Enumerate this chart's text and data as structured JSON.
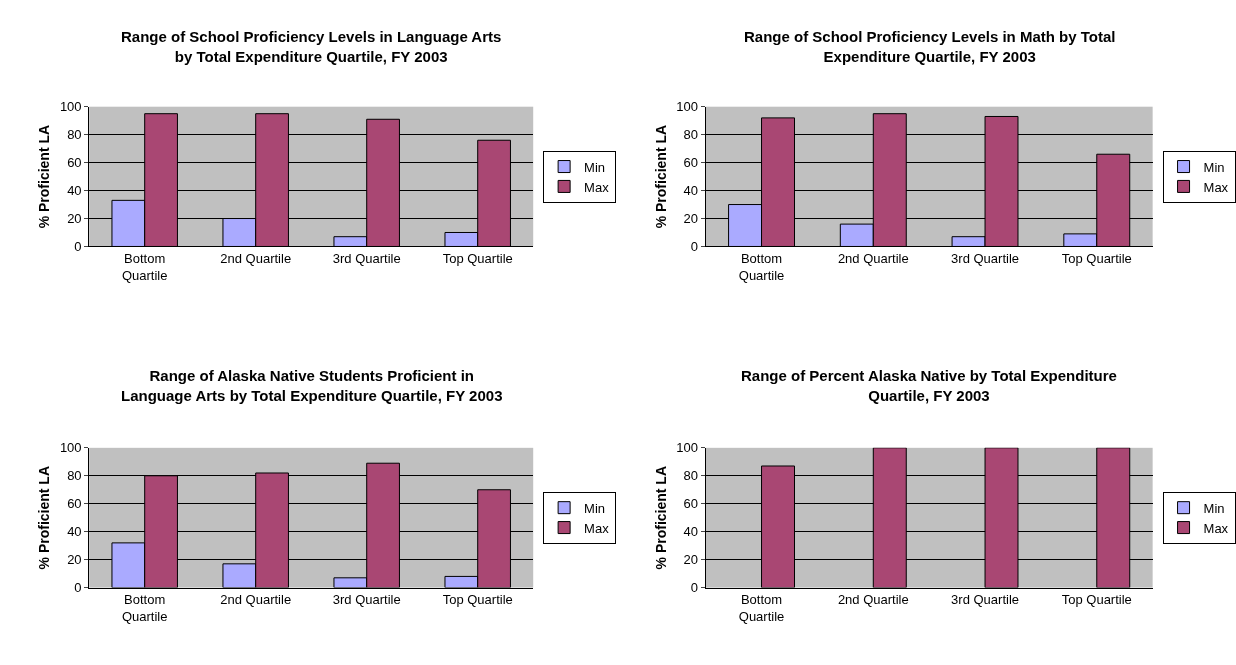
{
  "chart_data": [
    {
      "type": "bar",
      "title": "Range of School Proficiency Levels in Language Arts by Total Expenditure Quartile, FY 2003",
      "ylabel": "% Proficient LA",
      "categories": [
        "Bottom Quartile",
        "2nd Quartile",
        "3rd Quartile",
        "Top Quartile"
      ],
      "ylim": [
        0,
        100
      ],
      "yticks": [
        0,
        20,
        40,
        60,
        80,
        100
      ],
      "grid": "y",
      "legend": "right",
      "series": [
        {
          "name": "Min",
          "color": "#aaaaff",
          "values": [
            33,
            20,
            7,
            10
          ]
        },
        {
          "name": "Max",
          "color": "#a94773",
          "values": [
            95,
            95,
            91,
            76
          ]
        }
      ]
    },
    {
      "type": "bar",
      "title": "Range of School Proficiency Levels in Math by Total Expenditure Quartile, FY 2003",
      "ylabel": "% Proficient LA",
      "categories": [
        "Bottom Quartile",
        "2nd Quartile",
        "3rd Quartile",
        "Top Quartile"
      ],
      "ylim": [
        0,
        100
      ],
      "yticks": [
        0,
        20,
        40,
        60,
        80,
        100
      ],
      "grid": "y",
      "legend": "right",
      "series": [
        {
          "name": "Min",
          "color": "#aaaaff",
          "values": [
            30,
            16,
            7,
            9
          ]
        },
        {
          "name": "Max",
          "color": "#a94773",
          "values": [
            92,
            95,
            93,
            66
          ]
        }
      ]
    },
    {
      "type": "bar",
      "title": "Range of Alaska Native Students Proficient in Language Arts by Total Expenditure Quartile, FY 2003",
      "ylabel": "% Proficient LA",
      "categories": [
        "Bottom Quartile",
        "2nd Quartile",
        "3rd Quartile",
        "Top Quartile"
      ],
      "ylim": [
        0,
        100
      ],
      "yticks": [
        0,
        20,
        40,
        60,
        80,
        100
      ],
      "grid": "y",
      "legend": "right",
      "series": [
        {
          "name": "Min",
          "color": "#aaaaff",
          "values": [
            32,
            17,
            7,
            8
          ]
        },
        {
          "name": "Max",
          "color": "#a94773",
          "values": [
            80,
            82,
            89,
            70
          ]
        }
      ]
    },
    {
      "type": "bar",
      "title": "Range of Percent Alaska Native by Total Expenditure Quartile, FY 2003",
      "ylabel": "% Proficient LA",
      "categories": [
        "Bottom Quartile",
        "2nd Quartile",
        "3rd Quartile",
        "Top Quartile"
      ],
      "ylim": [
        0,
        100
      ],
      "yticks": [
        0,
        20,
        40,
        60,
        80,
        100
      ],
      "grid": "y",
      "legend": "right",
      "series": [
        {
          "name": "Min",
          "color": "#aaaaff",
          "values": [
            null,
            null,
            null,
            null
          ]
        },
        {
          "name": "Max",
          "color": "#a94773",
          "values": [
            87,
            100,
            100,
            100
          ]
        }
      ]
    }
  ]
}
